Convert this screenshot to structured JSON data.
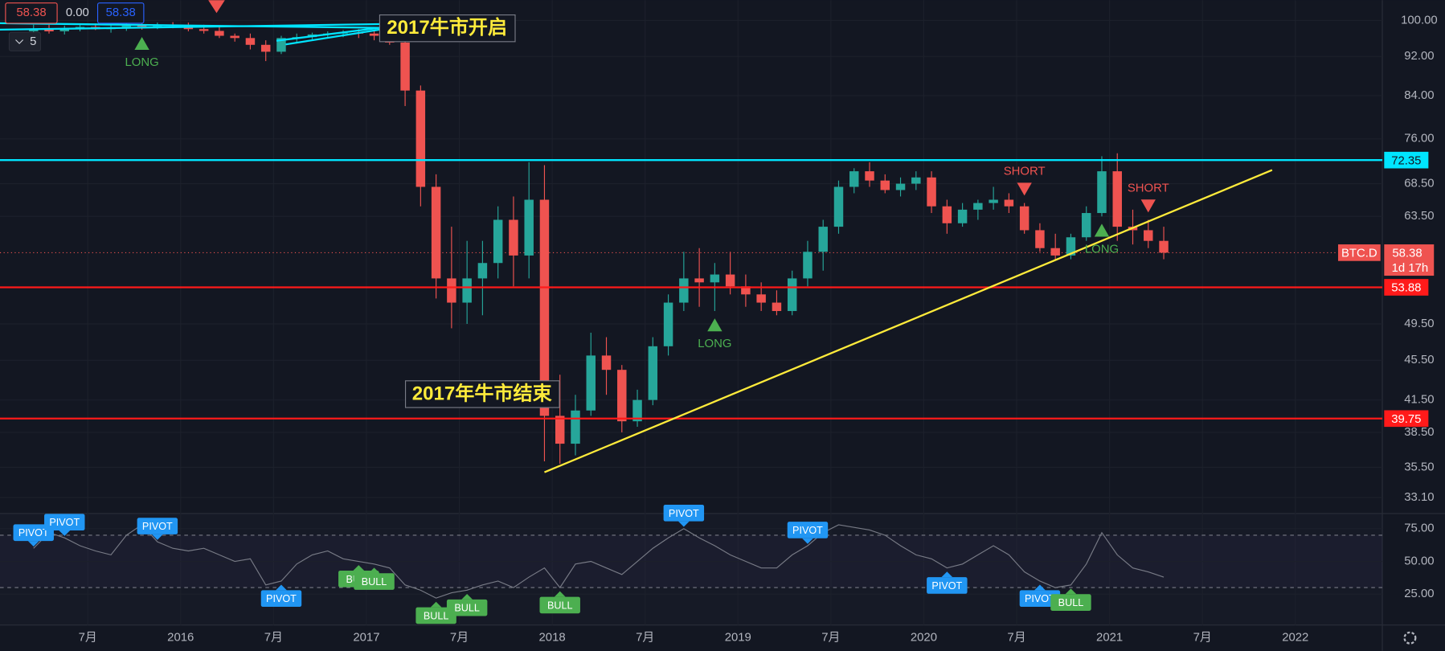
{
  "header": {
    "values": [
      "58.38",
      "0.00",
      "58.38"
    ],
    "collapse": "5"
  },
  "chart_data": {
    "type": "candlestick",
    "scale": "log",
    "ylim": [
      31.9,
      104.8
    ],
    "yticks": [
      {
        "value": 100,
        "label": "100.00"
      },
      {
        "value": 92,
        "label": "92.00"
      },
      {
        "value": 84,
        "label": "84.00"
      },
      {
        "value": 76,
        "label": "76.00"
      },
      {
        "value": 68.5,
        "label": "68.50"
      },
      {
        "value": 63.5,
        "label": "63.50"
      },
      {
        "value": 49.5,
        "label": "49.50"
      },
      {
        "value": 45.5,
        "label": "45.50"
      },
      {
        "value": 41.5,
        "label": "41.50"
      },
      {
        "value": 38.5,
        "label": "38.50"
      },
      {
        "value": 35.5,
        "label": "35.50"
      },
      {
        "value": 33.1,
        "label": "33.10"
      }
    ],
    "xticks": [
      {
        "value": "2015-07",
        "label": "7月"
      },
      {
        "value": "2016-01",
        "label": "2016"
      },
      {
        "value": "2016-07",
        "label": "7月"
      },
      {
        "value": "2017-01",
        "label": "2017"
      },
      {
        "value": "2017-07",
        "label": "7月"
      },
      {
        "value": "2018-01",
        "label": "2018"
      },
      {
        "value": "2018-07",
        "label": "7月"
      },
      {
        "value": "2019-01",
        "label": "2019"
      },
      {
        "value": "2019-07",
        "label": "7月"
      },
      {
        "value": "2020-01",
        "label": "2020"
      },
      {
        "value": "2020-07",
        "label": "7月"
      },
      {
        "value": "2021-01",
        "label": "2021"
      },
      {
        "value": "2021-07",
        "label": "7月"
      },
      {
        "value": "2022-01",
        "label": "2022"
      }
    ],
    "grid": true,
    "up_color": "#26a69a",
    "down_color": "#ef5350",
    "candles": {
      "x": [
        "2015-03",
        "2015-04",
        "2015-05",
        "2015-06",
        "2015-07",
        "2015-08",
        "2015-09",
        "2015-10",
        "2015-11",
        "2015-12",
        "2016-01",
        "2016-02",
        "2016-03",
        "2016-04",
        "2016-05",
        "2016-06",
        "2016-07",
        "2016-08",
        "2016-09",
        "2016-10",
        "2016-11",
        "2016-12",
        "2017-01",
        "2017-02",
        "2017-03",
        "2017-04",
        "2017-05",
        "2017-06",
        "2017-07",
        "2017-08",
        "2017-09",
        "2017-10",
        "2017-11",
        "2017-12",
        "2018-01",
        "2018-02",
        "2018-03",
        "2018-04",
        "2018-05",
        "2018-06",
        "2018-07",
        "2018-08",
        "2018-09",
        "2018-10",
        "2018-11",
        "2018-12",
        "2019-01",
        "2019-02",
        "2019-03",
        "2019-04",
        "2019-05",
        "2019-06",
        "2019-07",
        "2019-08",
        "2019-09",
        "2019-10",
        "2019-11",
        "2019-12",
        "2020-01",
        "2020-02",
        "2020-03",
        "2020-04",
        "2020-05",
        "2020-06",
        "2020-07",
        "2020-08",
        "2020-09",
        "2020-10",
        "2020-11",
        "2020-12",
        "2021-01",
        "2021-02",
        "2021-03",
        "2021-04"
      ],
      "open": [
        97.5,
        98.0,
        97.5,
        98.2,
        98.5,
        98.0,
        98.4,
        98.8,
        98.6,
        99.0,
        98.7,
        98.0,
        97.6,
        96.5,
        96.0,
        94.5,
        93.0,
        96.0,
        96.2,
        96.8,
        97.0,
        97.2,
        97.0,
        96.5,
        95.0,
        85.0,
        68.0,
        55.0,
        52.0,
        55.0,
        57.0,
        63.0,
        58.0,
        66.0,
        40.0,
        37.5,
        40.5,
        46.0,
        44.5,
        39.5,
        41.5,
        47.0,
        52.0,
        55.0,
        54.5,
        55.5,
        54.0,
        53.0,
        52.0,
        51.0,
        55.0,
        58.5,
        62.0,
        68.0,
        70.5,
        69.0,
        67.5,
        68.5,
        69.5,
        65.0,
        62.5,
        64.5,
        65.5,
        66.0,
        65.0,
        61.5,
        59.0,
        58.0,
        60.5,
        64.0,
        70.5,
        62.0,
        61.5,
        60.0
      ],
      "high": [
        99.0,
        99.0,
        98.8,
        99.2,
        99.3,
        99.0,
        99.4,
        99.5,
        99.5,
        99.6,
        99.5,
        99.0,
        98.5,
        97.0,
        97.0,
        95.5,
        96.5,
        97.0,
        97.2,
        97.5,
        97.8,
        98.0,
        97.8,
        97.0,
        95.5,
        86.0,
        70.0,
        62.0,
        60.0,
        60.0,
        65.0,
        66.5,
        72.0,
        71.5,
        44.0,
        42.0,
        48.5,
        48.0,
        45.0,
        42.5,
        48.0,
        53.0,
        58.5,
        59.0,
        57.0,
        58.5,
        55.5,
        54.5,
        53.5,
        56.0,
        60.0,
        63.0,
        69.0,
        71.0,
        72.0,
        70.0,
        69.5,
        70.5,
        70.5,
        66.0,
        65.5,
        66.0,
        68.0,
        67.0,
        65.5,
        62.5,
        61.0,
        61.0,
        65.0,
        73.0,
        73.5,
        64.5,
        63.0,
        62.0
      ],
      "low": [
        96.5,
        97.0,
        96.8,
        97.5,
        97.8,
        97.2,
        97.6,
        97.9,
        98.0,
        98.2,
        97.5,
        97.0,
        96.0,
        95.2,
        93.5,
        91.0,
        92.5,
        95.0,
        95.5,
        96.0,
        96.2,
        96.0,
        95.5,
        94.5,
        82.0,
        65.0,
        52.5,
        49.0,
        49.5,
        50.5,
        55.0,
        54.0,
        55.0,
        36.0,
        35.8,
        36.5,
        40.0,
        42.0,
        38.5,
        39.0,
        41.0,
        46.0,
        51.0,
        51.5,
        51.0,
        53.0,
        51.5,
        51.0,
        50.5,
        50.5,
        54.0,
        56.0,
        61.0,
        67.0,
        68.0,
        67.0,
        66.5,
        67.5,
        64.0,
        61.0,
        62.0,
        63.0,
        64.5,
        64.0,
        61.0,
        58.5,
        57.5,
        57.5,
        60.0,
        63.5,
        60.0,
        59.5,
        59.0,
        57.5
      ],
      "close": [
        98.0,
        97.5,
        98.2,
        98.5,
        98.0,
        98.4,
        98.8,
        98.6,
        99.0,
        98.7,
        98.0,
        97.6,
        96.5,
        96.0,
        94.5,
        93.0,
        96.0,
        96.2,
        96.8,
        97.0,
        97.2,
        97.0,
        96.5,
        95.0,
        85.0,
        68.0,
        55.0,
        52.0,
        55.0,
        57.0,
        63.0,
        58.0,
        66.0,
        40.0,
        37.5,
        40.5,
        46.0,
        44.5,
        39.5,
        41.5,
        47.0,
        52.0,
        55.0,
        54.5,
        55.5,
        54.0,
        53.0,
        52.0,
        51.0,
        55.0,
        58.5,
        62.0,
        68.0,
        70.5,
        69.0,
        67.5,
        68.5,
        69.5,
        65.0,
        62.5,
        64.5,
        65.5,
        66.0,
        65.0,
        61.5,
        59.0,
        58.0,
        60.5,
        64.0,
        70.5,
        62.0,
        61.5,
        60.0,
        58.38
      ]
    },
    "levels": [
      {
        "value": 72.35,
        "color": "#00e5ff"
      },
      {
        "value": 53.88,
        "color": "#ff1a1a"
      },
      {
        "value": 39.75,
        "color": "#ff1a1a"
      }
    ],
    "last": {
      "name": "BTC.D",
      "value": 58.38,
      "countdown": "1d 17h",
      "color": "#ef5350"
    },
    "trendline": {
      "x": [
        "2017-12",
        "2021-11"
      ],
      "y": [
        35.1,
        70.7
      ],
      "color": "#ffeb3b"
    },
    "annotations": [
      "2017牛市开启",
      "2017年牛市结束"
    ],
    "signals": [
      {
        "text": "LONG",
        "x": "2015-10"
      },
      {
        "text": "LONG",
        "x": "2018-11"
      },
      {
        "text": "SHORT",
        "x": "2020-07"
      },
      {
        "text": "LONG",
        "x": "2020-12"
      },
      {
        "text": "SHORT",
        "x": "2021-03"
      }
    ],
    "rsi": {
      "values": [
        60,
        72,
        68,
        62,
        58,
        55,
        70,
        78,
        65,
        60,
        58,
        60,
        55,
        50,
        52,
        32,
        35,
        48,
        55,
        58,
        52,
        50,
        48,
        45,
        32,
        28,
        22,
        26,
        28,
        32,
        35,
        30,
        38,
        45,
        30,
        48,
        50,
        45,
        40,
        50,
        60,
        68,
        75,
        68,
        62,
        55,
        50,
        45,
        45,
        55,
        62,
        72,
        78,
        76,
        74,
        70,
        62,
        55,
        52,
        45,
        48,
        55,
        62,
        55,
        42,
        35,
        30,
        32,
        48,
        72,
        55,
        45,
        42,
        38
      ],
      "color": "#787b86",
      "ylim": [
        1.4,
        86.6
      ],
      "yticks": [
        {
          "value": 75,
          "label": "75.00"
        },
        {
          "value": 50,
          "label": "50.00"
        },
        {
          "value": 25,
          "label": "25.00"
        }
      ],
      "dashed_levels": [
        70,
        30
      ],
      "signals": [
        {
          "text": "PIVOT",
          "x": "2015-03",
          "side": "high"
        },
        {
          "text": "PIVOT",
          "x": "2015-05",
          "side": "high"
        },
        {
          "text": "PIVOT",
          "x": "2015-11",
          "side": "high"
        },
        {
          "text": "PIVOT",
          "x": "2016-07",
          "side": "low"
        },
        {
          "text": "BULL",
          "x": "2016-12",
          "side": "low"
        },
        {
          "text": "BULL",
          "x": "2017-01",
          "side": "low"
        },
        {
          "text": "BULL",
          "x": "2017-05",
          "side": "low"
        },
        {
          "text": "BULL",
          "x": "2017-07",
          "side": "low"
        },
        {
          "text": "BULL",
          "x": "2018-01",
          "side": "low"
        },
        {
          "text": "PIVOT",
          "x": "2018-09",
          "side": "high"
        },
        {
          "text": "PIVOT",
          "x": "2019-05",
          "side": "high"
        },
        {
          "text": "PIVOT",
          "x": "2020-02",
          "side": "low"
        },
        {
          "text": "PIVOT",
          "x": "2020-08",
          "side": "low"
        },
        {
          "text": "BULL",
          "x": "2020-10",
          "side": "low"
        }
      ]
    }
  }
}
